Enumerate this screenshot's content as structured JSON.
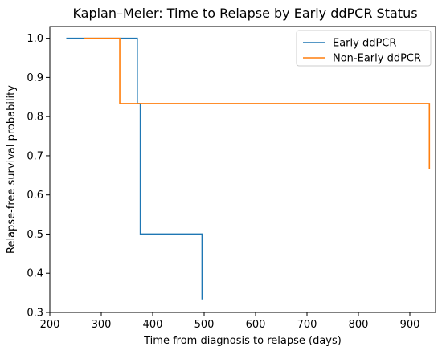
{
  "chart_data": {
    "type": "line",
    "step": true,
    "title": "Kaplan–Meier: Time to Relapse by Early ddPCR Status",
    "xlabel": "Time from diagnosis to relapse (days)",
    "ylabel": "Relapse-free survival probability",
    "xlim": [
      200,
      950
    ],
    "ylim": [
      0.3,
      1.03
    ],
    "xticks": [
      200,
      300,
      400,
      500,
      600,
      700,
      800,
      900
    ],
    "yticks": [
      0.3,
      0.4,
      0.5,
      0.6,
      0.7,
      0.8,
      0.9,
      1.0
    ],
    "xtick_labels": [
      "200",
      "300",
      "400",
      "500",
      "600",
      "700",
      "800",
      "900"
    ],
    "ytick_labels": [
      "0.3",
      "0.4",
      "0.5",
      "0.6",
      "0.7",
      "0.8",
      "0.9",
      "1.0"
    ],
    "grid": false,
    "legend_position": "top-right",
    "series": [
      {
        "name": "Early ddPCR",
        "color": "#1f77b4",
        "x": [
          232,
          370,
          376,
          496
        ],
        "y": [
          1.0,
          0.8333,
          0.5,
          0.3333
        ]
      },
      {
        "name": "Non-Early ddPCR",
        "color": "#ff7f0e",
        "x": [
          266,
          336,
          938
        ],
        "y": [
          1.0,
          0.8333,
          0.6667
        ]
      }
    ]
  }
}
